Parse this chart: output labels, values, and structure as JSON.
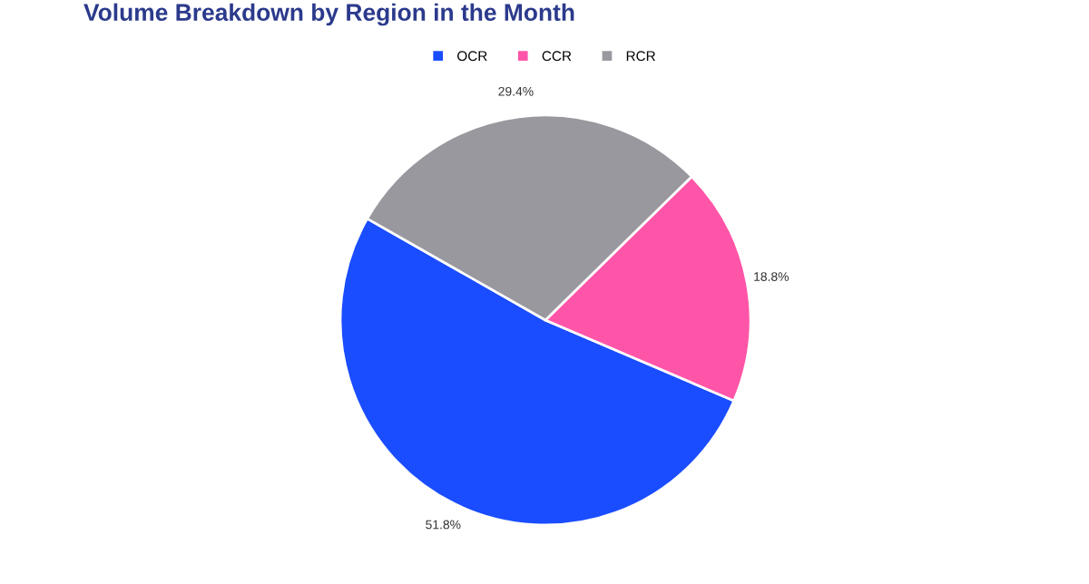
{
  "chart_data": {
    "type": "pie",
    "title": "Volume Breakdown by Region in the Month",
    "categories": [
      "OCR",
      "CCR",
      "RCR"
    ],
    "values": [
      51.8,
      18.8,
      29.4
    ],
    "colors": [
      "#1a4dff",
      "#ff55a8",
      "#98989e"
    ],
    "value_labels": [
      "51.8%",
      "18.8%",
      "29.4%"
    ],
    "legend": "top"
  }
}
